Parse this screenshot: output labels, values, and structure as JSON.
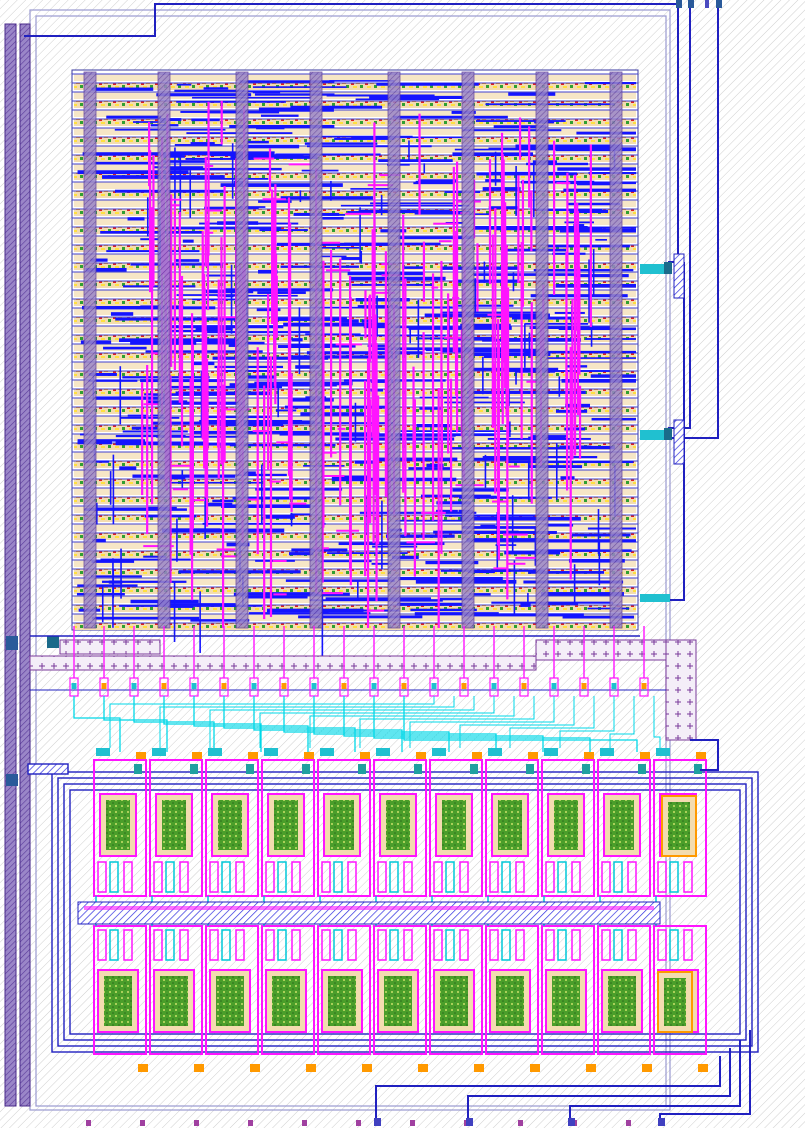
{
  "layout": {
    "view": "ic-layout-view",
    "colors": {
      "background": "#ffffff",
      "boundary_hatch": "#c8c8c8",
      "metal1_blue": "#1414ff",
      "metal2_magenta": "#ff14ff",
      "metal3_cyan": "#00e6e6",
      "poly_red": "#e01414",
      "diffusion_green": "#2f9e2f",
      "well_olive": "#8a9a2a",
      "fill_tan": "#f0d8a8",
      "contact_orange": "#ff9900",
      "via_teal": "#20a0a0",
      "power_rail_purple": "#8c3cc8",
      "power_bus_gray": "#7a6aa8"
    },
    "blocks": [
      {
        "name": "digital-standard-cell-array",
        "rows": 62,
        "columns_of_straps": 8
      },
      {
        "name": "analog-device-array",
        "upper_cells": 11,
        "lower_cells": 11
      }
    ],
    "pins": {
      "top": 4,
      "bottom": 11
    }
  }
}
